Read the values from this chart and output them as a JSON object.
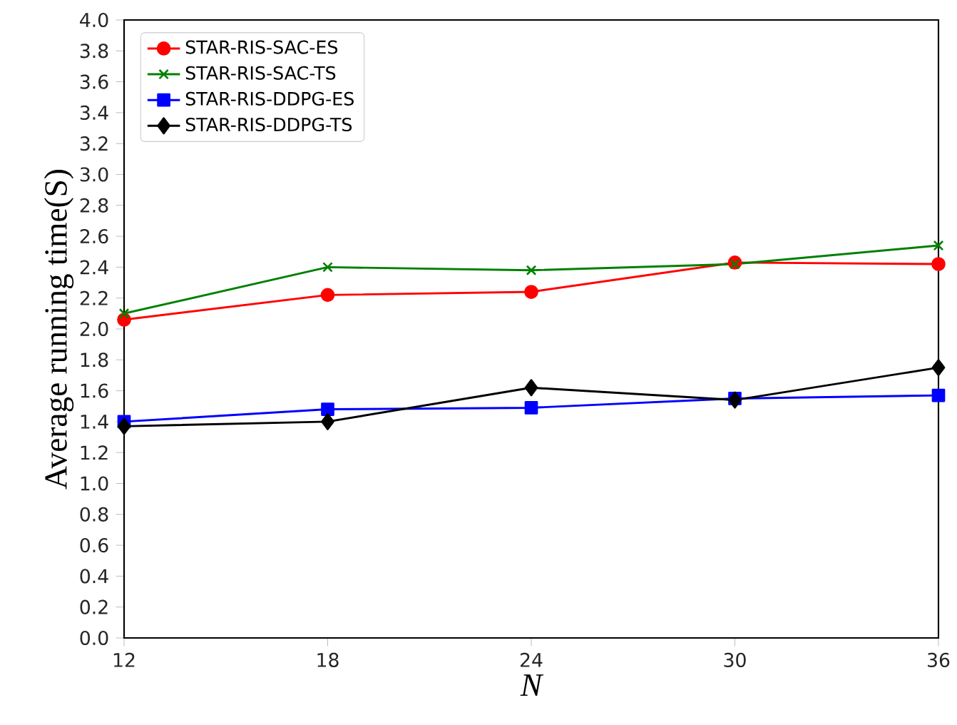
{
  "chart_data": {
    "type": "line",
    "xlabel": "N",
    "ylabel": "Average running time(S)",
    "x": [
      12,
      18,
      24,
      30,
      36
    ],
    "series": [
      {
        "name": "STAR-RIS-SAC-ES",
        "color": "#ff0000",
        "marker": "circle",
        "values": [
          2.06,
          2.22,
          2.24,
          2.43,
          2.42
        ]
      },
      {
        "name": "STAR-RIS-SAC-TS",
        "color": "#008000",
        "marker": "cross",
        "values": [
          2.1,
          2.4,
          2.38,
          2.42,
          2.54
        ]
      },
      {
        "name": "STAR-RIS-DDPG-ES",
        "color": "#0000ff",
        "marker": "square",
        "values": [
          1.4,
          1.48,
          1.49,
          1.55,
          1.57
        ]
      },
      {
        "name": "STAR-RIS-DDPG-TS",
        "color": "#000000",
        "marker": "diamond",
        "values": [
          1.37,
          1.4,
          1.62,
          1.54,
          1.75
        ]
      }
    ],
    "xlim": [
      12,
      36
    ],
    "ylim": [
      0,
      4
    ],
    "xticks": [
      12,
      18,
      24,
      30,
      36
    ],
    "yticks": [
      {
        "value": 0,
        "label": "0.0"
      },
      0.2,
      0.4,
      0.6,
      0.8,
      {
        "value": 1,
        "label": "1.0"
      },
      1.2,
      1.4,
      1.6,
      1.8,
      {
        "value": 2,
        "label": "2.0"
      },
      2.2,
      2.4,
      2.6,
      2.8,
      {
        "value": 3,
        "label": "3.0"
      },
      3.2,
      3.4,
      3.6,
      3.8,
      {
        "value": 4,
        "label": "4.0"
      }
    ],
    "legend": "top left",
    "grid": false
  }
}
